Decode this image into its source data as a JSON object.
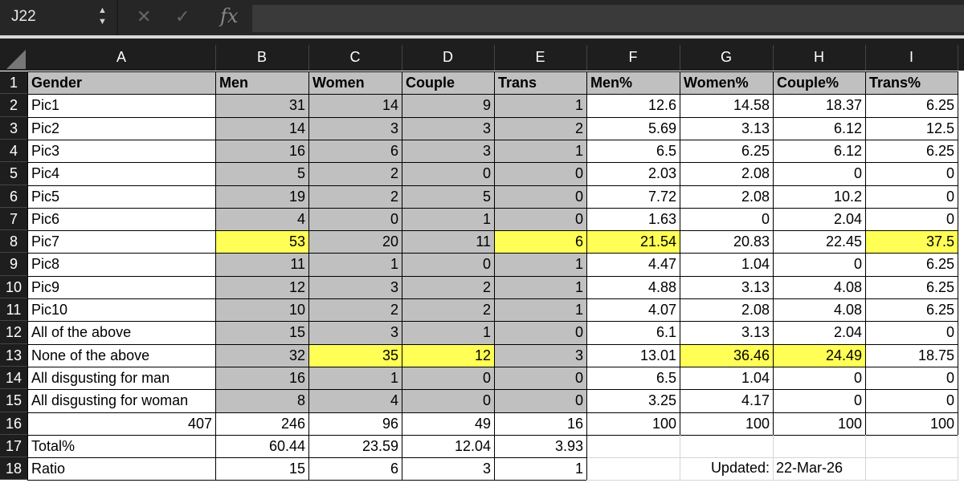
{
  "formula_bar": {
    "name_box": "J22",
    "formula": "",
    "fx_label": "fx",
    "cancel_icon": "x-icon",
    "confirm_icon": "check-icon"
  },
  "columns": [
    "A",
    "B",
    "C",
    "D",
    "E",
    "F",
    "G",
    "H",
    "I"
  ],
  "header": [
    "Gender",
    "Men",
    "Women",
    "Couple",
    "Trans",
    "Men%",
    "Women%",
    "Couple%",
    "Trans%"
  ],
  "rows": [
    [
      "Pic1",
      "31",
      "14",
      "9",
      "1",
      "12.6",
      "14.58",
      "18.37",
      "6.25"
    ],
    [
      "Pic2",
      "14",
      "3",
      "3",
      "2",
      "5.69",
      "3.13",
      "6.12",
      "12.5"
    ],
    [
      "Pic3",
      "16",
      "6",
      "3",
      "1",
      "6.5",
      "6.25",
      "6.12",
      "6.25"
    ],
    [
      "Pic4",
      "5",
      "2",
      "0",
      "0",
      "2.03",
      "2.08",
      "0",
      "0"
    ],
    [
      "Pic5",
      "19",
      "2",
      "5",
      "0",
      "7.72",
      "2.08",
      "10.2",
      "0"
    ],
    [
      "Pic6",
      "4",
      "0",
      "1",
      "0",
      "1.63",
      "0",
      "2.04",
      "0"
    ],
    [
      "Pic7",
      "53",
      "20",
      "11",
      "6",
      "21.54",
      "20.83",
      "22.45",
      "37.5"
    ],
    [
      "Pic8",
      "11",
      "1",
      "0",
      "1",
      "4.47",
      "1.04",
      "0",
      "6.25"
    ],
    [
      "Pic9",
      "12",
      "3",
      "2",
      "1",
      "4.88",
      "3.13",
      "4.08",
      "6.25"
    ],
    [
      "Pic10",
      "10",
      "2",
      "2",
      "1",
      "4.07",
      "2.08",
      "4.08",
      "6.25"
    ],
    [
      "All of the above",
      "15",
      "3",
      "1",
      "0",
      "6.1",
      "3.13",
      "2.04",
      "0"
    ],
    [
      "None of the above",
      "32",
      "35",
      "12",
      "3",
      "13.01",
      "36.46",
      "24.49",
      "18.75"
    ],
    [
      "All disgusting for man",
      "16",
      "1",
      "0",
      "0",
      "6.5",
      "1.04",
      "0",
      "0"
    ],
    [
      "All disgusting for woman",
      "8",
      "4",
      "0",
      "0",
      "3.25",
      "4.17",
      "0",
      "0"
    ],
    [
      "407",
      "246",
      "96",
      "49",
      "16",
      "100",
      "100",
      "100",
      "100"
    ],
    [
      "Total%",
      "60.44",
      "23.59",
      "12.04",
      "3.93",
      "",
      "",
      "",
      ""
    ],
    [
      "Ratio",
      "15",
      "6",
      "3",
      "1",
      "",
      "Updated:",
      "22-Mar-26",
      ""
    ]
  ],
  "highlight_color": "#ffff55",
  "fill_color": "#c0c0c0",
  "highlighted_cells": [
    "B8",
    "E8",
    "F8",
    "I8",
    "C13",
    "D13",
    "G13",
    "H13"
  ]
}
